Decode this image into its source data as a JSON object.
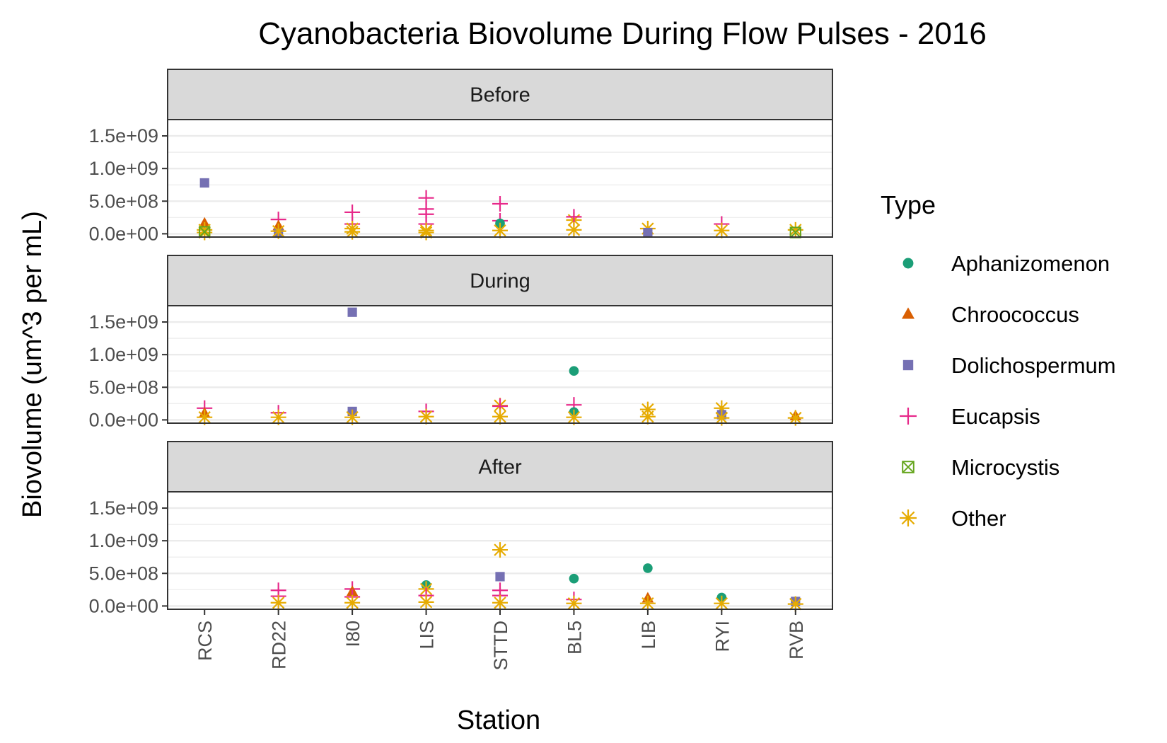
{
  "chart_data": {
    "type": "scatter",
    "title": "Cyanobacteria Biovolume During Flow Pulses - 2016",
    "xlabel": "Station",
    "ylabel": "Biovolume (um^3 per mL)",
    "categories": [
      "RCS",
      "RD22",
      "I80",
      "LIS",
      "STTD",
      "BL5",
      "LIB",
      "RYI",
      "RVB"
    ],
    "ylim": [
      -50000000.0,
      1750000000.0
    ],
    "yticks": [
      0,
      500000000.0,
      1000000000.0,
      1500000000.0
    ],
    "ytick_labels": [
      "0.0e+00",
      "5.0e+08",
      "1.0e+09",
      "1.5e+09"
    ],
    "facets": [
      "Before",
      "During",
      "After"
    ],
    "legend": {
      "title": "Type",
      "position": "right",
      "entries": [
        {
          "name": "Aphanizomenon",
          "color": "#1b9e77",
          "shape": "circle"
        },
        {
          "name": "Chroococcus",
          "color": "#d95f02",
          "shape": "triangle"
        },
        {
          "name": "Dolichospermum",
          "color": "#7570b3",
          "shape": "square"
        },
        {
          "name": "Eucapsis",
          "color": "#e7298a",
          "shape": "plus"
        },
        {
          "name": "Microcystis",
          "color": "#66a61e",
          "shape": "boxx"
        },
        {
          "name": "Other",
          "color": "#e6ab02",
          "shape": "star"
        }
      ]
    },
    "grid": true,
    "points": [
      {
        "facet": "Before",
        "station": "RCS",
        "type": "Dolichospermum",
        "y": 780000000.0
      },
      {
        "facet": "Before",
        "station": "RCS",
        "type": "Chroococcus",
        "y": 160000000.0
      },
      {
        "facet": "Before",
        "station": "RCS",
        "type": "Other",
        "y": 60000000.0
      },
      {
        "facet": "Before",
        "station": "RCS",
        "type": "Other",
        "y": 20000000.0
      },
      {
        "facet": "Before",
        "station": "RCS",
        "type": "Microcystis",
        "y": 30000000.0
      },
      {
        "facet": "Before",
        "station": "RD22",
        "type": "Eucapsis",
        "y": 220000000.0
      },
      {
        "facet": "Before",
        "station": "RD22",
        "type": "Chroococcus",
        "y": 120000000.0
      },
      {
        "facet": "Before",
        "station": "RD22",
        "type": "Dolichospermum",
        "y": 10000000.0
      },
      {
        "facet": "Before",
        "station": "RD22",
        "type": "Other",
        "y": 40000000.0
      },
      {
        "facet": "Before",
        "station": "I80",
        "type": "Eucapsis",
        "y": 330000000.0
      },
      {
        "facet": "Before",
        "station": "I80",
        "type": "Eucapsis",
        "y": 150000000.0
      },
      {
        "facet": "Before",
        "station": "I80",
        "type": "Other",
        "y": 80000000.0
      },
      {
        "facet": "Before",
        "station": "I80",
        "type": "Other",
        "y": 30000000.0
      },
      {
        "facet": "Before",
        "station": "LIS",
        "type": "Eucapsis",
        "y": 550000000.0
      },
      {
        "facet": "Before",
        "station": "LIS",
        "type": "Eucapsis",
        "y": 380000000.0
      },
      {
        "facet": "Before",
        "station": "LIS",
        "type": "Eucapsis",
        "y": 300000000.0
      },
      {
        "facet": "Before",
        "station": "LIS",
        "type": "Eucapsis",
        "y": 150000000.0
      },
      {
        "facet": "Before",
        "station": "LIS",
        "type": "Other",
        "y": 50000000.0
      },
      {
        "facet": "Before",
        "station": "LIS",
        "type": "Other",
        "y": 20000000.0
      },
      {
        "facet": "Before",
        "station": "STTD",
        "type": "Eucapsis",
        "y": 460000000.0
      },
      {
        "facet": "Before",
        "station": "STTD",
        "type": "Eucapsis",
        "y": 200000000.0
      },
      {
        "facet": "Before",
        "station": "STTD",
        "type": "Aphanizomenon",
        "y": 160000000.0
      },
      {
        "facet": "Before",
        "station": "STTD",
        "type": "Other",
        "y": 50000000.0
      },
      {
        "facet": "Before",
        "station": "BL5",
        "type": "Other",
        "y": 210000000.0
      },
      {
        "facet": "Before",
        "station": "BL5",
        "type": "Eucapsis",
        "y": 260000000.0
      },
      {
        "facet": "Before",
        "station": "BL5",
        "type": "Other",
        "y": 60000000.0
      },
      {
        "facet": "Before",
        "station": "LIB",
        "type": "Other",
        "y": 80000000.0
      },
      {
        "facet": "Before",
        "station": "LIB",
        "type": "Dolichospermum",
        "y": 20000000.0
      },
      {
        "facet": "Before",
        "station": "RYI",
        "type": "Eucapsis",
        "y": 150000000.0
      },
      {
        "facet": "Before",
        "station": "RYI",
        "type": "Other",
        "y": 50000000.0
      },
      {
        "facet": "Before",
        "station": "RVB",
        "type": "Other",
        "y": 60000000.0
      },
      {
        "facet": "Before",
        "station": "RVB",
        "type": "Microcystis",
        "y": 20000000.0
      },
      {
        "facet": "During",
        "station": "RCS",
        "type": "Eucapsis",
        "y": 180000000.0
      },
      {
        "facet": "During",
        "station": "RCS",
        "type": "Chroococcus",
        "y": 100000000.0
      },
      {
        "facet": "During",
        "station": "RCS",
        "type": "Other",
        "y": 40000000.0
      },
      {
        "facet": "During",
        "station": "RD22",
        "type": "Eucapsis",
        "y": 110000000.0
      },
      {
        "facet": "During",
        "station": "RD22",
        "type": "Other",
        "y": 40000000.0
      },
      {
        "facet": "During",
        "station": "I80",
        "type": "Dolichospermum",
        "y": 1650000000.0
      },
      {
        "facet": "During",
        "station": "I80",
        "type": "Dolichospermum",
        "y": 130000000.0
      },
      {
        "facet": "During",
        "station": "I80",
        "type": "Other",
        "y": 40000000.0
      },
      {
        "facet": "During",
        "station": "LIS",
        "type": "Eucapsis",
        "y": 130000000.0
      },
      {
        "facet": "During",
        "station": "LIS",
        "type": "Other",
        "y": 50000000.0
      },
      {
        "facet": "During",
        "station": "STTD",
        "type": "Other",
        "y": 220000000.0
      },
      {
        "facet": "During",
        "station": "STTD",
        "type": "Eucapsis",
        "y": 210000000.0
      },
      {
        "facet": "During",
        "station": "STTD",
        "type": "Other",
        "y": 50000000.0
      },
      {
        "facet": "During",
        "station": "BL5",
        "type": "Aphanizomenon",
        "y": 750000000.0
      },
      {
        "facet": "During",
        "station": "BL5",
        "type": "Eucapsis",
        "y": 230000000.0
      },
      {
        "facet": "During",
        "station": "BL5",
        "type": "Aphanizomenon",
        "y": 120000000.0
      },
      {
        "facet": "During",
        "station": "BL5",
        "type": "Other",
        "y": 40000000.0
      },
      {
        "facet": "During",
        "station": "LIB",
        "type": "Other",
        "y": 160000000.0
      },
      {
        "facet": "During",
        "station": "LIB",
        "type": "Other",
        "y": 50000000.0
      },
      {
        "facet": "During",
        "station": "RYI",
        "type": "Other",
        "y": 180000000.0
      },
      {
        "facet": "During",
        "station": "RYI",
        "type": "Dolichospermum",
        "y": 80000000.0
      },
      {
        "facet": "During",
        "station": "RYI",
        "type": "Other",
        "y": 30000000.0
      },
      {
        "facet": "During",
        "station": "RVB",
        "type": "Chroococcus",
        "y": 60000000.0
      },
      {
        "facet": "During",
        "station": "RVB",
        "type": "Other",
        "y": 30000000.0
      },
      {
        "facet": "After",
        "station": "RD22",
        "type": "Eucapsis",
        "y": 240000000.0
      },
      {
        "facet": "After",
        "station": "RD22",
        "type": "Eucapsis",
        "y": 150000000.0
      },
      {
        "facet": "After",
        "station": "RD22",
        "type": "Other",
        "y": 50000000.0
      },
      {
        "facet": "After",
        "station": "I80",
        "type": "Eucapsis",
        "y": 260000000.0
      },
      {
        "facet": "After",
        "station": "I80",
        "type": "Chroococcus",
        "y": 220000000.0
      },
      {
        "facet": "After",
        "station": "I80",
        "type": "Eucapsis",
        "y": 140000000.0
      },
      {
        "facet": "After",
        "station": "I80",
        "type": "Other",
        "y": 50000000.0
      },
      {
        "facet": "After",
        "station": "LIS",
        "type": "Aphanizomenon",
        "y": 320000000.0
      },
      {
        "facet": "After",
        "station": "LIS",
        "type": "Other",
        "y": 260000000.0
      },
      {
        "facet": "After",
        "station": "LIS",
        "type": "Eucapsis",
        "y": 160000000.0
      },
      {
        "facet": "After",
        "station": "LIS",
        "type": "Other",
        "y": 60000000.0
      },
      {
        "facet": "After",
        "station": "STTD",
        "type": "Other",
        "y": 860000000.0
      },
      {
        "facet": "After",
        "station": "STTD",
        "type": "Dolichospermum",
        "y": 450000000.0
      },
      {
        "facet": "After",
        "station": "STTD",
        "type": "Eucapsis",
        "y": 240000000.0
      },
      {
        "facet": "After",
        "station": "STTD",
        "type": "Eucapsis",
        "y": 160000000.0
      },
      {
        "facet": "After",
        "station": "STTD",
        "type": "Other",
        "y": 50000000.0
      },
      {
        "facet": "After",
        "station": "BL5",
        "type": "Aphanizomenon",
        "y": 420000000.0
      },
      {
        "facet": "After",
        "station": "BL5",
        "type": "Eucapsis",
        "y": 100000000.0
      },
      {
        "facet": "After",
        "station": "BL5",
        "type": "Other",
        "y": 40000000.0
      },
      {
        "facet": "After",
        "station": "LIB",
        "type": "Aphanizomenon",
        "y": 580000000.0
      },
      {
        "facet": "After",
        "station": "LIB",
        "type": "Chroococcus",
        "y": 120000000.0
      },
      {
        "facet": "After",
        "station": "LIB",
        "type": "Other",
        "y": 40000000.0
      },
      {
        "facet": "After",
        "station": "RYI",
        "type": "Aphanizomenon",
        "y": 130000000.0
      },
      {
        "facet": "After",
        "station": "RYI",
        "type": "Other",
        "y": 40000000.0
      },
      {
        "facet": "After",
        "station": "RVB",
        "type": "Dolichospermum",
        "y": 70000000.0
      },
      {
        "facet": "After",
        "station": "RVB",
        "type": "Other",
        "y": 30000000.0
      }
    ]
  }
}
